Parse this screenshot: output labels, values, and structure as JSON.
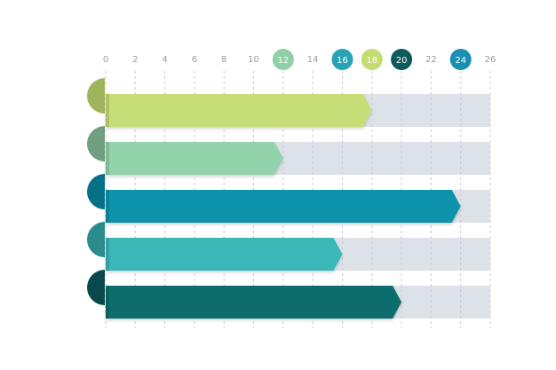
{
  "chart_data": {
    "type": "bar",
    "orientation": "horizontal",
    "title": "",
    "xlabel": "",
    "ylabel": "",
    "xlim": [
      0,
      26
    ],
    "ticks": [
      0,
      2,
      4,
      6,
      8,
      10,
      12,
      14,
      16,
      18,
      20,
      22,
      24,
      26
    ],
    "grid": true,
    "highlighted_ticks": [
      {
        "value": 12,
        "color": "#8fd0a6"
      },
      {
        "value": 16,
        "color": "#27a3b4"
      },
      {
        "value": 18,
        "color": "#c2dc72"
      },
      {
        "value": 20,
        "color": "#0e5a5c"
      },
      {
        "value": 24,
        "color": "#1b8fb1"
      }
    ],
    "bars": [
      {
        "value": 18,
        "color": "#c7dd78",
        "tab_color": "#9fb55c"
      },
      {
        "value": 12,
        "color": "#93d3ab",
        "tab_color": "#6f9e80"
      },
      {
        "value": 24,
        "color": "#0a93ab",
        "tab_color": "#057186"
      },
      {
        "value": 16,
        "color": "#3ab7b8",
        "tab_color": "#2a8c8c"
      },
      {
        "value": 20,
        "color": "#0b6d6c",
        "tab_color": "#09494c"
      }
    ],
    "track_color": "#dde1e8"
  }
}
